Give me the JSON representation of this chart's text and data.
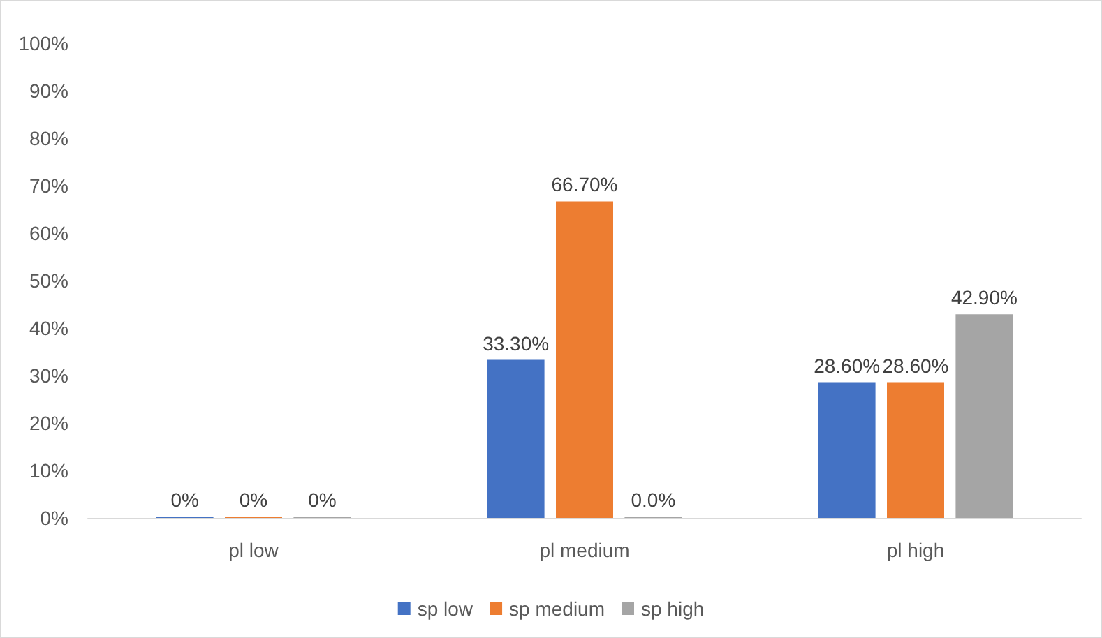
{
  "chart_data": {
    "type": "bar",
    "categories": [
      "pl low",
      "pl medium",
      "pl high"
    ],
    "series": [
      {
        "name": "sp low",
        "color": "#4472c4",
        "values": [
          0,
          33.3,
          28.6
        ],
        "value_labels": [
          "0%",
          "33.30%",
          "28.60%"
        ]
      },
      {
        "name": "sp medium",
        "color": "#ed7d31",
        "values": [
          0,
          66.7,
          28.6
        ],
        "value_labels": [
          "0%",
          "66.70%",
          "28.60%"
        ]
      },
      {
        "name": "sp high",
        "color": "#a5a5a5",
        "values": [
          0,
          0,
          42.9
        ],
        "value_labels": [
          "0%",
          "0.0%",
          "42.90%"
        ]
      }
    ],
    "ylim": [
      0,
      100
    ],
    "yticks": [
      {
        "value": 0,
        "label": "0%"
      },
      {
        "value": 10,
        "label": "10%"
      },
      {
        "value": 20,
        "label": "20%"
      },
      {
        "value": 30,
        "label": "30%"
      },
      {
        "value": 40,
        "label": "40%"
      },
      {
        "value": 50,
        "label": "50%"
      },
      {
        "value": 60,
        "label": "60%"
      },
      {
        "value": 70,
        "label": "70%"
      },
      {
        "value": 80,
        "label": "80%"
      },
      {
        "value": 90,
        "label": "90%"
      },
      {
        "value": 100,
        "label": "100%"
      }
    ],
    "grid": false,
    "legend": "bottom"
  }
}
